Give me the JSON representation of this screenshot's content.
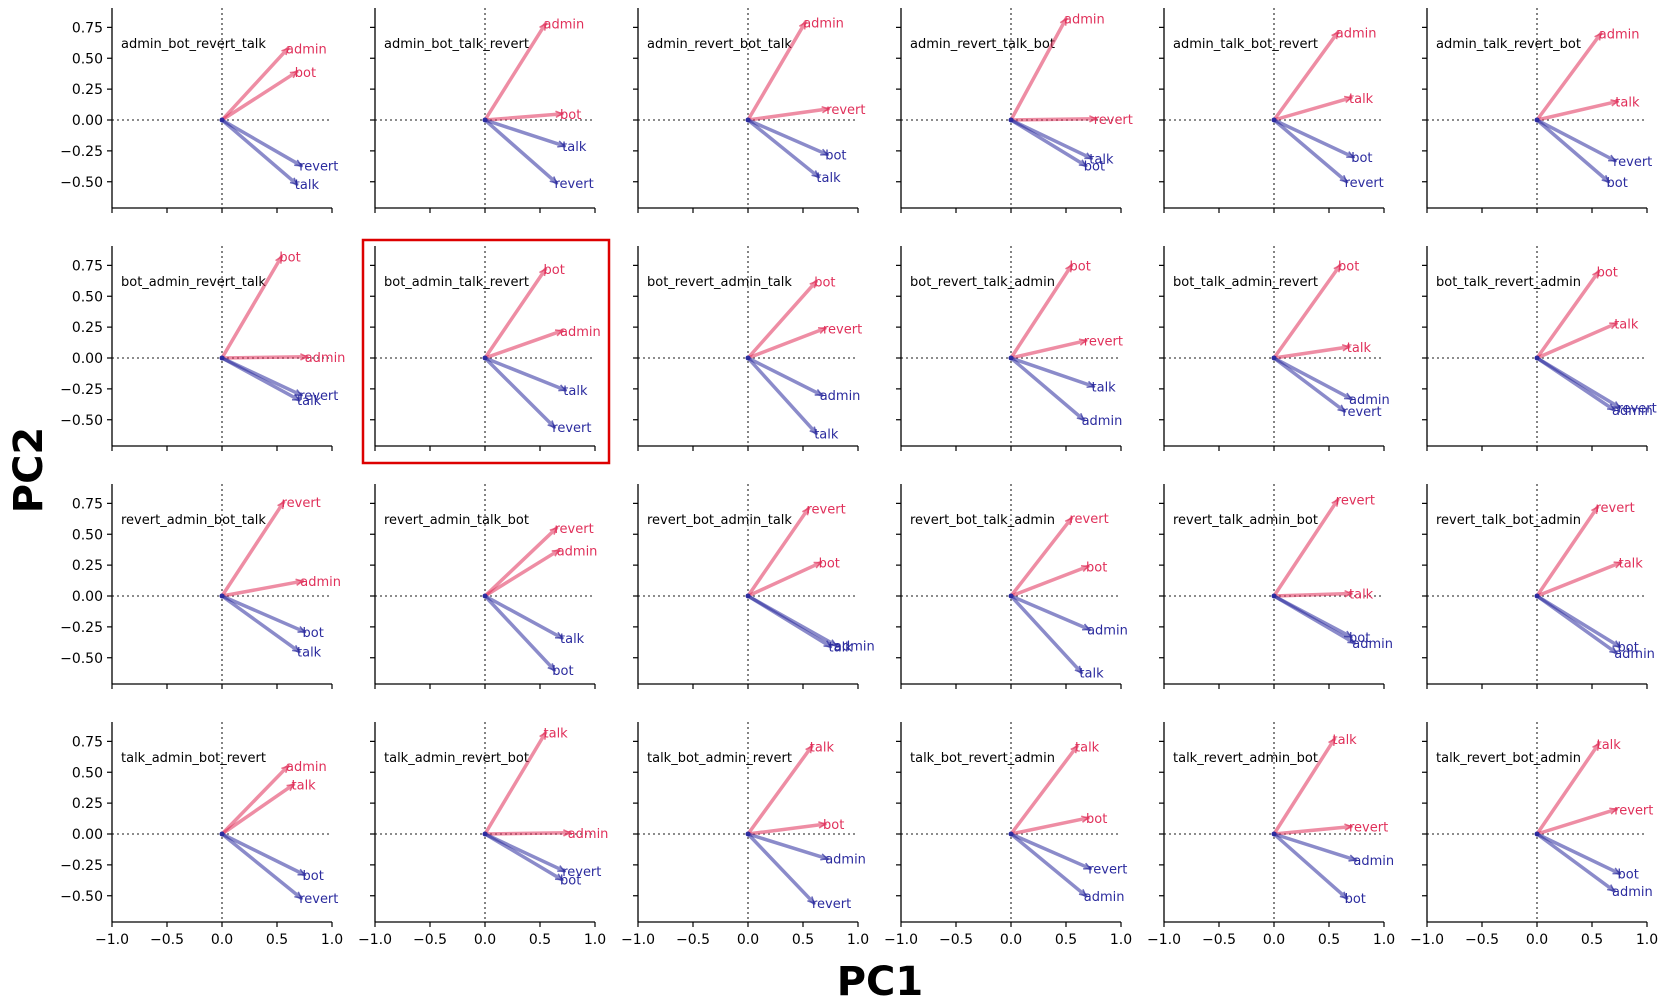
{
  "figure": {
    "xlabel": "PC1",
    "ylabel": "PC2",
    "colors": {
      "positive": "#e0305a",
      "negative": "#2b2b9e",
      "highlight": "#dd0000",
      "axis": "#000000",
      "zero_line": "#666666"
    }
  },
  "chart_data": {
    "type": "biplot-grid",
    "rows": 4,
    "cols": 6,
    "highlighted_panel": "bot_admin_talk_revert",
    "xlim": [
      -1.0,
      1.0
    ],
    "ylim": [
      -0.7,
      0.9
    ],
    "x_ticks": [
      "−1.0",
      "−0.5",
      "0.0",
      "0.5",
      "1.0"
    ],
    "x_tick_values": [
      -1.0,
      -0.5,
      0.0,
      0.5,
      1.0
    ],
    "y_ticks": [
      "0.75",
      "0.50",
      "0.25",
      "0.00",
      "−0.25",
      "−0.50"
    ],
    "y_tick_values": [
      0.75,
      0.5,
      0.25,
      0.0,
      -0.25,
      -0.5
    ],
    "panels": [
      {
        "title": "admin_bot_revert_talk",
        "vectors": [
          {
            "label": "admin",
            "x": 0.6,
            "y": 0.58
          },
          {
            "label": "bot",
            "x": 0.68,
            "y": 0.39
          },
          {
            "label": "revert",
            "x": 0.72,
            "y": -0.37
          },
          {
            "label": "talk",
            "x": 0.68,
            "y": -0.52
          }
        ]
      },
      {
        "title": "admin_bot_talk_revert",
        "vectors": [
          {
            "label": "admin",
            "x": 0.55,
            "y": 0.78
          },
          {
            "label": "bot",
            "x": 0.7,
            "y": 0.05
          },
          {
            "label": "talk",
            "x": 0.72,
            "y": -0.21
          },
          {
            "label": "revert",
            "x": 0.65,
            "y": -0.51
          }
        ]
      },
      {
        "title": "admin_revert_bot_talk",
        "vectors": [
          {
            "label": "admin",
            "x": 0.52,
            "y": 0.79
          },
          {
            "label": "revert",
            "x": 0.73,
            "y": 0.09
          },
          {
            "label": "bot",
            "x": 0.72,
            "y": -0.28
          },
          {
            "label": "talk",
            "x": 0.64,
            "y": -0.46
          }
        ]
      },
      {
        "title": "admin_revert_talk_bot",
        "vectors": [
          {
            "label": "admin",
            "x": 0.5,
            "y": 0.82
          },
          {
            "label": "revert",
            "x": 0.77,
            "y": 0.01
          },
          {
            "label": "talk",
            "x": 0.73,
            "y": -0.31
          },
          {
            "label": "bot",
            "x": 0.68,
            "y": -0.37
          }
        ]
      },
      {
        "title": "admin_talk_bot_revert",
        "vectors": [
          {
            "label": "admin",
            "x": 0.58,
            "y": 0.71
          },
          {
            "label": "talk",
            "x": 0.7,
            "y": 0.18
          },
          {
            "label": "bot",
            "x": 0.72,
            "y": -0.3
          },
          {
            "label": "revert",
            "x": 0.66,
            "y": -0.5
          }
        ]
      },
      {
        "title": "admin_talk_revert_bot",
        "vectors": [
          {
            "label": "admin",
            "x": 0.58,
            "y": 0.7
          },
          {
            "label": "talk",
            "x": 0.73,
            "y": 0.15
          },
          {
            "label": "revert",
            "x": 0.71,
            "y": -0.33
          },
          {
            "label": "bot",
            "x": 0.65,
            "y": -0.5
          }
        ]
      },
      {
        "title": "bot_admin_revert_talk",
        "vectors": [
          {
            "label": "bot",
            "x": 0.54,
            "y": 0.82
          },
          {
            "label": "admin",
            "x": 0.77,
            "y": 0.01
          },
          {
            "label": "revert",
            "x": 0.72,
            "y": -0.3
          },
          {
            "label": "talk",
            "x": 0.7,
            "y": -0.34
          }
        ]
      },
      {
        "title": "bot_admin_talk_revert",
        "vectors": [
          {
            "label": "bot",
            "x": 0.55,
            "y": 0.72
          },
          {
            "label": "admin",
            "x": 0.7,
            "y": 0.22
          },
          {
            "label": "talk",
            "x": 0.73,
            "y": -0.26
          },
          {
            "label": "revert",
            "x": 0.63,
            "y": -0.56
          }
        ]
      },
      {
        "title": "bot_revert_admin_talk",
        "vectors": [
          {
            "label": "bot",
            "x": 0.62,
            "y": 0.62
          },
          {
            "label": "revert",
            "x": 0.7,
            "y": 0.24
          },
          {
            "label": "admin",
            "x": 0.67,
            "y": -0.3
          },
          {
            "label": "talk",
            "x": 0.62,
            "y": -0.61
          }
        ]
      },
      {
        "title": "bot_revert_talk_admin",
        "vectors": [
          {
            "label": "bot",
            "x": 0.55,
            "y": 0.75
          },
          {
            "label": "revert",
            "x": 0.68,
            "y": 0.14
          },
          {
            "label": "talk",
            "x": 0.75,
            "y": -0.23
          },
          {
            "label": "admin",
            "x": 0.66,
            "y": -0.5
          }
        ]
      },
      {
        "title": "bot_talk_admin_revert",
        "vectors": [
          {
            "label": "bot",
            "x": 0.6,
            "y": 0.75
          },
          {
            "label": "talk",
            "x": 0.68,
            "y": 0.09
          },
          {
            "label": "admin",
            "x": 0.7,
            "y": -0.33
          },
          {
            "label": "revert",
            "x": 0.64,
            "y": -0.43
          }
        ]
      },
      {
        "title": "bot_talk_revert_admin",
        "vectors": [
          {
            "label": "bot",
            "x": 0.56,
            "y": 0.7
          },
          {
            "label": "talk",
            "x": 0.72,
            "y": 0.28
          },
          {
            "label": "revert",
            "x": 0.75,
            "y": -0.4
          },
          {
            "label": "admin",
            "x": 0.7,
            "y": -0.42
          }
        ]
      },
      {
        "title": "revert_admin_bot_talk",
        "vectors": [
          {
            "label": "revert",
            "x": 0.56,
            "y": 0.76
          },
          {
            "label": "admin",
            "x": 0.73,
            "y": 0.12
          },
          {
            "label": "bot",
            "x": 0.75,
            "y": -0.29
          },
          {
            "label": "talk",
            "x": 0.7,
            "y": -0.45
          }
        ]
      },
      {
        "title": "revert_admin_talk_bot",
        "vectors": [
          {
            "label": "revert",
            "x": 0.65,
            "y": 0.55
          },
          {
            "label": "admin",
            "x": 0.67,
            "y": 0.37
          },
          {
            "label": "talk",
            "x": 0.7,
            "y": -0.34
          },
          {
            "label": "bot",
            "x": 0.63,
            "y": -0.6
          }
        ]
      },
      {
        "title": "revert_bot_admin_talk",
        "vectors": [
          {
            "label": "revert",
            "x": 0.55,
            "y": 0.71
          },
          {
            "label": "bot",
            "x": 0.66,
            "y": 0.27
          },
          {
            "label": "admin",
            "x": 0.8,
            "y": -0.4
          },
          {
            "label": "talk",
            "x": 0.75,
            "y": -0.41
          }
        ]
      },
      {
        "title": "revert_bot_talk_admin",
        "vectors": [
          {
            "label": "revert",
            "x": 0.55,
            "y": 0.63
          },
          {
            "label": "bot",
            "x": 0.7,
            "y": 0.24
          },
          {
            "label": "admin",
            "x": 0.71,
            "y": -0.27
          },
          {
            "label": "talk",
            "x": 0.64,
            "y": -0.62
          }
        ]
      },
      {
        "title": "revert_talk_admin_bot",
        "vectors": [
          {
            "label": "revert",
            "x": 0.58,
            "y": 0.78
          },
          {
            "label": "talk",
            "x": 0.7,
            "y": 0.02
          },
          {
            "label": "bot",
            "x": 0.7,
            "y": -0.33
          },
          {
            "label": "admin",
            "x": 0.73,
            "y": -0.38
          }
        ]
      },
      {
        "title": "revert_talk_bot_admin",
        "vectors": [
          {
            "label": "revert",
            "x": 0.55,
            "y": 0.72
          },
          {
            "label": "talk",
            "x": 0.76,
            "y": 0.27
          },
          {
            "label": "bot",
            "x": 0.75,
            "y": -0.41
          },
          {
            "label": "admin",
            "x": 0.72,
            "y": -0.46
          }
        ]
      },
      {
        "title": "talk_admin_bot_revert",
        "vectors": [
          {
            "label": "admin",
            "x": 0.6,
            "y": 0.55
          },
          {
            "label": "talk",
            "x": 0.65,
            "y": 0.4
          },
          {
            "label": "bot",
            "x": 0.75,
            "y": -0.33
          },
          {
            "label": "revert",
            "x": 0.72,
            "y": -0.52
          }
        ]
      },
      {
        "title": "talk_admin_revert_bot",
        "vectors": [
          {
            "label": "talk",
            "x": 0.55,
            "y": 0.82
          },
          {
            "label": "admin",
            "x": 0.77,
            "y": 0.01
          },
          {
            "label": "revert",
            "x": 0.72,
            "y": -0.3
          },
          {
            "label": "bot",
            "x": 0.7,
            "y": -0.37
          }
        ]
      },
      {
        "title": "talk_bot_admin_revert",
        "vectors": [
          {
            "label": "talk",
            "x": 0.58,
            "y": 0.71
          },
          {
            "label": "bot",
            "x": 0.7,
            "y": 0.08
          },
          {
            "label": "admin",
            "x": 0.72,
            "y": -0.2
          },
          {
            "label": "revert",
            "x": 0.6,
            "y": -0.56
          }
        ]
      },
      {
        "title": "talk_bot_revert_admin",
        "vectors": [
          {
            "label": "talk",
            "x": 0.6,
            "y": 0.71
          },
          {
            "label": "bot",
            "x": 0.7,
            "y": 0.13
          },
          {
            "label": "revert",
            "x": 0.72,
            "y": -0.28
          },
          {
            "label": "admin",
            "x": 0.68,
            "y": -0.5
          }
        ]
      },
      {
        "title": "talk_revert_admin_bot",
        "vectors": [
          {
            "label": "talk",
            "x": 0.55,
            "y": 0.77
          },
          {
            "label": "revert",
            "x": 0.7,
            "y": 0.06
          },
          {
            "label": "admin",
            "x": 0.74,
            "y": -0.21
          },
          {
            "label": "bot",
            "x": 0.66,
            "y": -0.52
          }
        ]
      },
      {
        "title": "talk_revert_bot_admin",
        "vectors": [
          {
            "label": "talk",
            "x": 0.56,
            "y": 0.73
          },
          {
            "label": "revert",
            "x": 0.72,
            "y": 0.2
          },
          {
            "label": "bot",
            "x": 0.75,
            "y": -0.32
          },
          {
            "label": "admin",
            "x": 0.7,
            "y": -0.46
          }
        ]
      }
    ]
  }
}
